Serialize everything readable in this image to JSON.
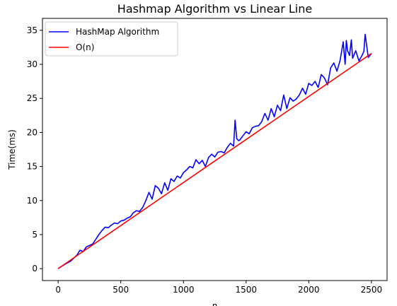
{
  "chart_data": {
    "type": "line",
    "title": "Hashmap Algorithm vs Linear Line",
    "xlabel": "n",
    "ylabel": "Time(ms)",
    "xlim": [
      -125,
      2625
    ],
    "ylim": [
      -1.75,
      36.75
    ],
    "xticks": [
      0,
      500,
      1000,
      1500,
      2000,
      2500
    ],
    "yticks": [
      0,
      5,
      10,
      15,
      20,
      25,
      30,
      35
    ],
    "grid": false,
    "legend_position": "upper-left",
    "series": [
      {
        "name": "HashMap Algorithm",
        "color": "#0000ff",
        "x": [
          0,
          50,
          100,
          150,
          175,
          200,
          225,
          250,
          275,
          300,
          325,
          350,
          375,
          400,
          425,
          450,
          475,
          500,
          525,
          550,
          575,
          600,
          625,
          650,
          675,
          700,
          725,
          750,
          775,
          800,
          825,
          850,
          875,
          900,
          925,
          950,
          975,
          1000,
          1025,
          1050,
          1075,
          1100,
          1125,
          1150,
          1175,
          1200,
          1225,
          1250,
          1275,
          1300,
          1325,
          1350,
          1375,
          1400,
          1412,
          1425,
          1440,
          1450,
          1475,
          1500,
          1525,
          1550,
          1575,
          1600,
          1625,
          1650,
          1675,
          1700,
          1725,
          1750,
          1775,
          1800,
          1825,
          1850,
          1875,
          1900,
          1925,
          1950,
          1975,
          2000,
          2025,
          2050,
          2075,
          2100,
          2125,
          2150,
          2175,
          2200,
          2225,
          2250,
          2275,
          2290,
          2300,
          2310,
          2325,
          2340,
          2350,
          2375,
          2400,
          2425,
          2440,
          2450,
          2475,
          2500
        ],
        "y": [
          0.0,
          0.6,
          1.1,
          2.0,
          2.7,
          2.5,
          3.2,
          3.4,
          3.6,
          4.3,
          5.0,
          5.6,
          6.1,
          6.0,
          6.4,
          6.7,
          6.6,
          7.0,
          7.1,
          7.4,
          7.6,
          8.2,
          8.5,
          8.4,
          9.0,
          10.0,
          11.2,
          10.2,
          12.2,
          11.8,
          11.0,
          12.6,
          11.5,
          13.2,
          12.8,
          13.6,
          13.3,
          14.1,
          14.5,
          15.0,
          14.8,
          16.0,
          15.4,
          15.9,
          15.0,
          16.3,
          16.8,
          16.4,
          17.1,
          17.2,
          17.0,
          17.8,
          18.4,
          18.0,
          21.8,
          19.1,
          18.8,
          18.9,
          19.5,
          20.1,
          19.8,
          20.7,
          20.9,
          21.0,
          21.6,
          22.8,
          21.8,
          23.5,
          22.3,
          24.0,
          23.2,
          25.5,
          23.5,
          25.1,
          24.6,
          24.9,
          25.5,
          26.5,
          25.6,
          27.2,
          26.9,
          27.5,
          26.6,
          28.5,
          28.0,
          27.0,
          29.5,
          30.2,
          29.0,
          30.6,
          33.3,
          30.0,
          33.5,
          32.0,
          31.3,
          33.6,
          30.9,
          32.0,
          30.5,
          31.3,
          31.9,
          34.4,
          31.0,
          31.6
        ]
      },
      {
        "name": "O(n)",
        "color": "#ff0000",
        "x": [
          0,
          2500
        ],
        "y": [
          0.0,
          31.6
        ]
      }
    ]
  }
}
